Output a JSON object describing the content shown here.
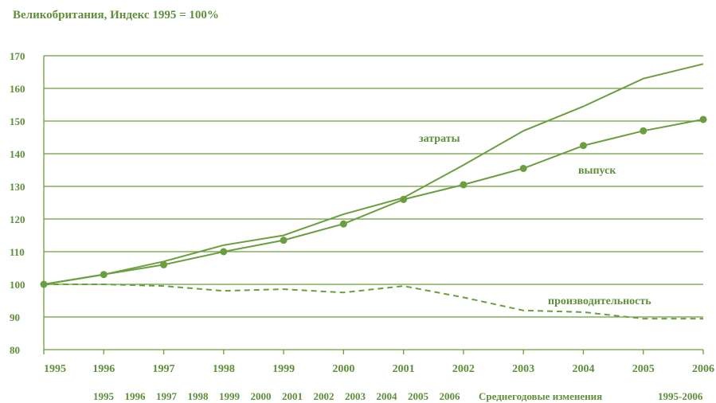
{
  "chart_data": {
    "type": "line",
    "title": "Великобритания, Индекс 1995 = 100%",
    "x": [
      "1995",
      "1996",
      "1997",
      "1998",
      "1999",
      "2000",
      "2001",
      "2002",
      "2003",
      "2004",
      "2005",
      "2006"
    ],
    "ylim": [
      80,
      170
    ],
    "yticks": [
      80,
      90,
      100,
      110,
      120,
      130,
      140,
      150,
      160,
      170
    ],
    "grid": true,
    "series": [
      {
        "name": "затраты",
        "values": [
          100,
          103,
          107,
          112,
          115,
          121.5,
          126.5,
          136.5,
          147,
          154.5,
          163,
          167.5
        ],
        "markers": false,
        "style": "solid"
      },
      {
        "name": "выпуск",
        "values": [
          100,
          103,
          106,
          110,
          113.5,
          118.5,
          126,
          130.5,
          135.5,
          142.5,
          147,
          150.5
        ],
        "markers": true,
        "style": "solid"
      },
      {
        "name": "производительность",
        "values": [
          100,
          100,
          99.5,
          98,
          98.5,
          97.5,
          99.5,
          96,
          92,
          91.5,
          89.5,
          89.5
        ],
        "markers": false,
        "style": "dashed"
      }
    ],
    "footer": {
      "years": [
        "1995",
        "1996",
        "1997",
        "1998",
        "1999",
        "2000",
        "2001",
        "2002",
        "2003",
        "2004",
        "2005",
        "2006"
      ],
      "caption": "Среднегодовые изменения",
      "range": "1995-2006"
    }
  },
  "colors": {
    "line": "#6a9e3f",
    "text": "#5f8f3a",
    "grid": "#6a9e3f"
  }
}
